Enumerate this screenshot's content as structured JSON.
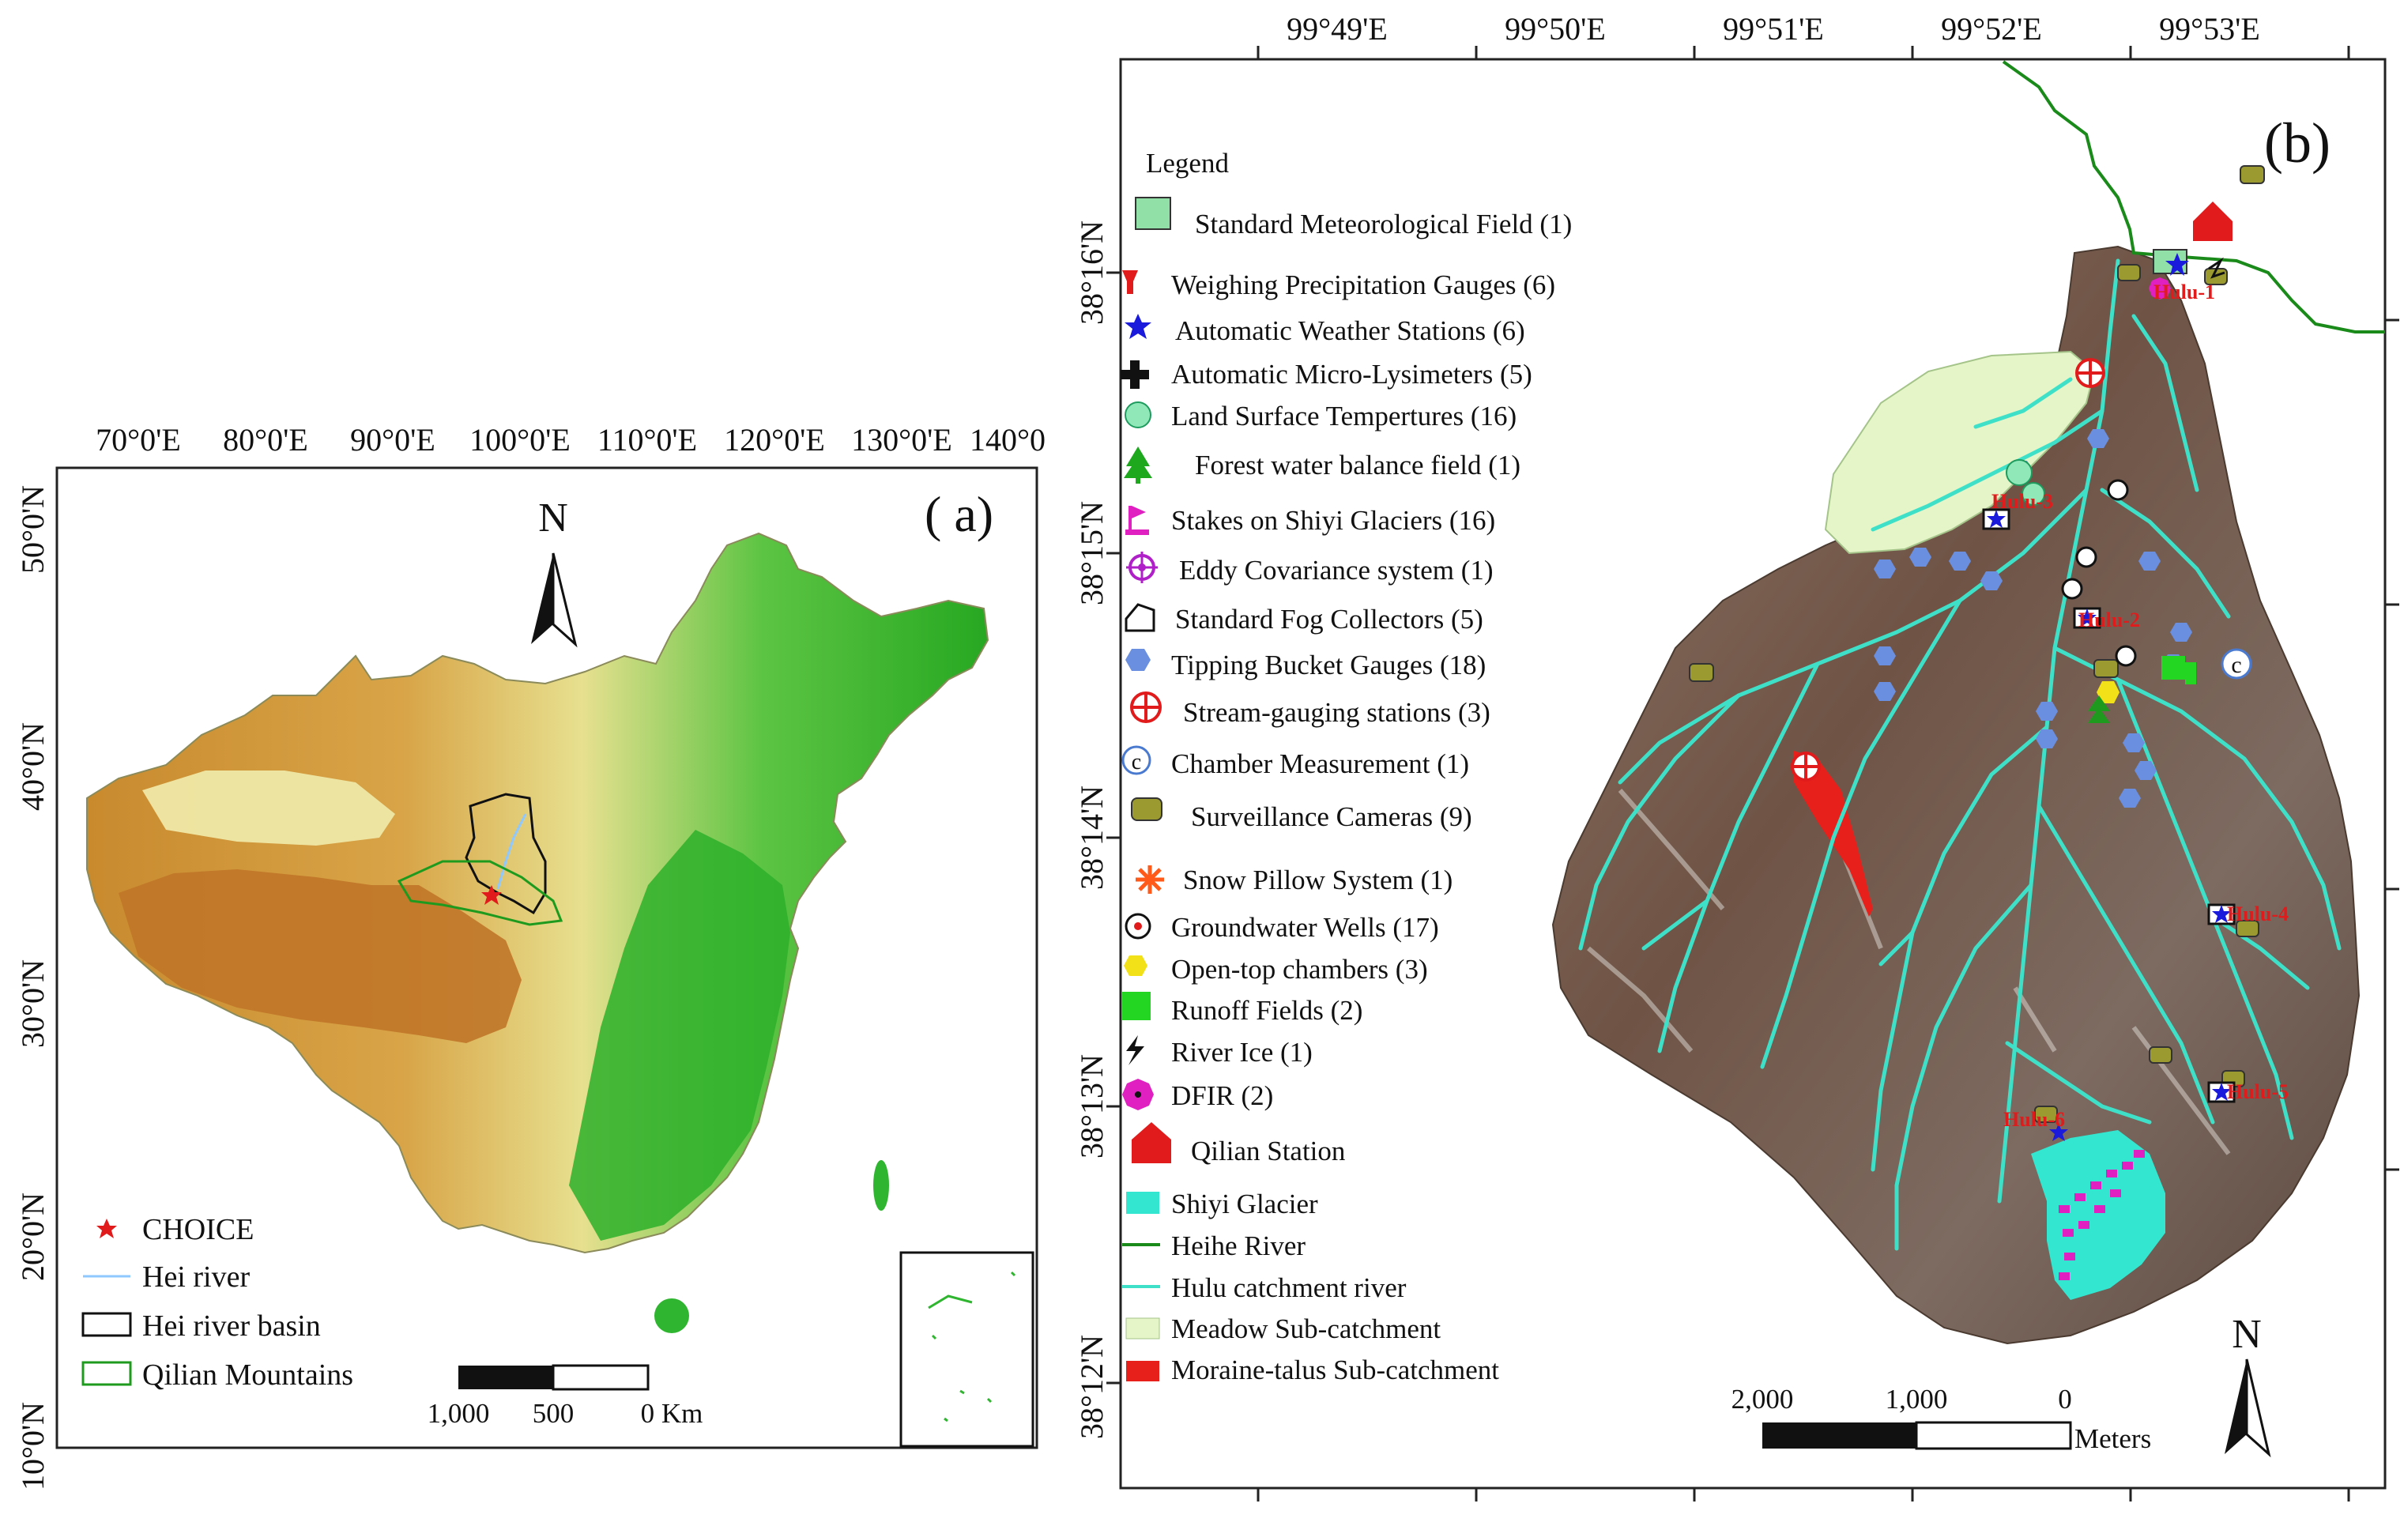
{
  "panel_a": {
    "label": "( a)",
    "north": "N",
    "lon_ticks": [
      "70°0'E",
      "80°0'E",
      "90°0'E",
      "100°0'E",
      "110°0'E",
      "120°0'E",
      "130°0'E",
      "140°0"
    ],
    "lat_ticks": [
      "50°0'N",
      "40°0'N",
      "30°0'N",
      "20°0'N",
      "10°0'N"
    ],
    "legend": [
      {
        "label": "CHOICE",
        "symbol": "red-star-icon"
      },
      {
        "label": "Hei river",
        "symbol": "blue-line-icon"
      },
      {
        "label": "Hei river basin",
        "symbol": "black-outline-box-icon"
      },
      {
        "label": "Qilian Mountains",
        "symbol": "green-outline-box-icon"
      }
    ],
    "scale": {
      "labels": [
        "1,000",
        "500",
        "0 Km"
      ]
    }
  },
  "panel_b": {
    "label": "(b)",
    "north": "N",
    "legend_title": "Legend",
    "lon_ticks": [
      "99°49'E",
      "99°50'E",
      "99°51'E",
      "99°52'E",
      "99°53'E"
    ],
    "lat_ticks": [
      "38°16'N",
      "38°15'N",
      "38°14'N",
      "38°13'N",
      "38°12'N"
    ],
    "legend": [
      {
        "label": "Standard Meteorological Field (1)",
        "symbol": "met-field-icon"
      },
      {
        "label": "Weighing Precipitation Gauges (6)",
        "symbol": "red-gauge-icon"
      },
      {
        "label": "Automatic Weather Stations (6)",
        "symbol": "blue-star-icon"
      },
      {
        "label": "Automatic Micro-Lysimeters (5)",
        "symbol": "black-cross-icon"
      },
      {
        "label": "Land Surface Tempertures (16)",
        "symbol": "green-t-circle-icon"
      },
      {
        "label": "Forest water balance field (1)",
        "symbol": "green-tree-icon"
      },
      {
        "label": "Stakes on Shiyi Glaciers (16)",
        "symbol": "magenta-flag-icon"
      },
      {
        "label": "Eddy Covariance system (1)",
        "symbol": "purple-target-icon"
      },
      {
        "label": "Standard Fog Collectors (5)",
        "symbol": "house-outline-icon"
      },
      {
        "label": "Tipping Bucket Gauges (18)",
        "symbol": "blue-hexagon-icon"
      },
      {
        "label": "Stream-gauging stations (3)",
        "symbol": "red-crosshair-icon"
      },
      {
        "label": "Chamber Measurement (1)",
        "symbol": "copyright-c-icon"
      },
      {
        "label": "Surveillance Cameras (9)",
        "symbol": "camera-icon"
      },
      {
        "label": "Snow Pillow System (1)",
        "symbol": "orange-asterisk-icon"
      },
      {
        "label": "Groundwater Wells (17)",
        "symbol": "well-icon"
      },
      {
        "label": "Open-top chambers (3)",
        "symbol": "yellow-hexagon-icon"
      },
      {
        "label": "Runoff Fields (2)",
        "symbol": "green-square-icon"
      },
      {
        "label": "River Ice (1)",
        "symbol": "lightning-icon"
      },
      {
        "label": "DFIR (2)",
        "symbol": "magenta-octagon-icon"
      },
      {
        "label": "Qilian Station",
        "symbol": "red-house-icon"
      },
      {
        "label": "Shiyi Glacier",
        "symbol": "cyan-box-icon"
      },
      {
        "label": "Heihe River",
        "symbol": "green-line-icon"
      },
      {
        "label": "Hulu catchment river",
        "symbol": "cyan-line-icon"
      },
      {
        "label": "Meadow Sub-catchment",
        "symbol": "pale-green-box-icon"
      },
      {
        "label": "Moraine-talus Sub-catchment",
        "symbol": "red-box-icon"
      }
    ],
    "site_labels": [
      "Hulu-1",
      "Hulu-3",
      "Hulu-2",
      "Hulu-4",
      "Hulu-5",
      "Hulu-6"
    ],
    "scale": {
      "labels": [
        "2,000",
        "1,000",
        "0"
      ],
      "unit": "Meters"
    }
  },
  "colors": {
    "lowland_green": "#2fb52f",
    "plateau_brown": "#b8792e",
    "basin_yellow": "#e8e49a",
    "river_cyan": "#3fe0c8",
    "heihe_green": "#1a8a1a",
    "glacier_cyan": "#33e6d0",
    "meadow": "#e6f5c8",
    "accent_red": "#e11b1b"
  }
}
